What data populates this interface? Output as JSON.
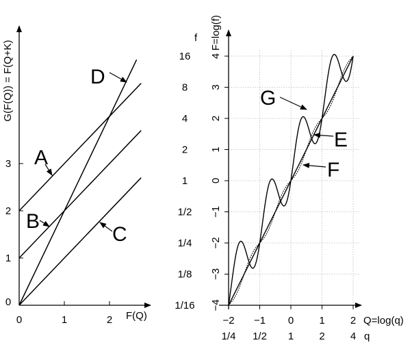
{
  "chart_data": [
    {
      "type": "line",
      "xlabel": "F(Q)",
      "ylabel": "G(F(Q)) = F(Q+K)",
      "x_ticks": [
        "0",
        "1",
        "2"
      ],
      "y_ticks": [
        "0",
        "1",
        "2",
        "3"
      ],
      "xlim": [
        0,
        2.7
      ],
      "ylim": [
        0,
        5.4
      ],
      "series": [
        {
          "name": "A",
          "points": [
            [
              0,
              2
            ],
            [
              2.7,
              4.7
            ]
          ]
        },
        {
          "name": "B",
          "points": [
            [
              0,
              1
            ],
            [
              2.7,
              3.7
            ]
          ]
        },
        {
          "name": "C",
          "points": [
            [
              0,
              0
            ],
            [
              2.7,
              2.7
            ]
          ]
        },
        {
          "name": "D",
          "points": [
            [
              0,
              0
            ],
            [
              2.6,
              5.2
            ]
          ]
        }
      ],
      "annotations": [
        "A",
        "B",
        "C",
        "D"
      ],
      "grid": false
    },
    {
      "type": "line",
      "xlabel": "Q=log(q)",
      "ylabel": "F=log(f)",
      "x_ticks": [
        "−2",
        "−1",
        "0",
        "1",
        "2"
      ],
      "x_ticks_secondary": [
        "1/4",
        "1/2",
        "1",
        "2",
        "4"
      ],
      "x_secondary_label": "q",
      "y_ticks": [
        "−4",
        "−3",
        "−2",
        "−1",
        "0",
        "1",
        "2",
        "3",
        "4"
      ],
      "y_ticks_secondary": [
        "1/16",
        "1/8",
        "1/4",
        "1/2",
        "1",
        "2",
        "4",
        "8",
        "16"
      ],
      "y_secondary_label": "f",
      "xlim": [
        -2,
        2
      ],
      "ylim": [
        -4,
        4
      ],
      "grid": true,
      "series": [
        {
          "name": "E",
          "function": "F = 2Q",
          "style": "solid"
        },
        {
          "name": "F",
          "function": "F = 2Q - (0.45/pi) sin(2 pi Q)",
          "style": "dotted"
        },
        {
          "name": "G",
          "function": "F = 2Q + 0.75 sin(2 pi Q) - 0.45 cos(2 pi Q) + 0.45",
          "style": "solid"
        }
      ],
      "annotations": [
        "G",
        "E",
        "F"
      ]
    }
  ]
}
